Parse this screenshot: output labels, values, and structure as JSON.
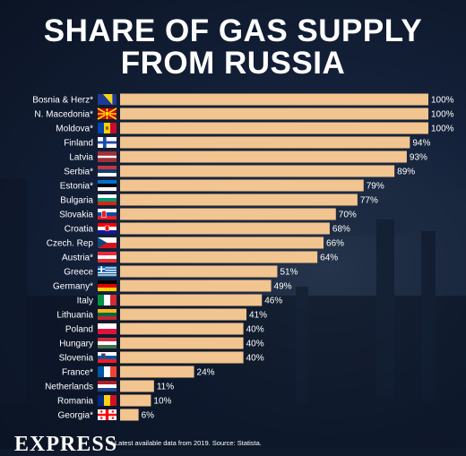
{
  "chart_data": {
    "type": "bar",
    "orientation": "horizontal",
    "title_lines": [
      "SHARE OF GAS SUPPLY",
      "FROM RUSSIA"
    ],
    "categories": [
      "Bosnia & Herz*",
      "N. Macedonia*",
      "Moldova*",
      "Finland",
      "Latvia",
      "Serbia*",
      "Estonia*",
      "Bulgaria",
      "Slovakia",
      "Croatia",
      "Czech. Rep",
      "Austria*",
      "Greece",
      "Germany*",
      "Italy",
      "Lithuania",
      "Poland",
      "Hungary",
      "Slovenia",
      "France*",
      "Netherlands",
      "Romania",
      "Georgia*"
    ],
    "values": [
      100,
      100,
      100,
      94,
      93,
      89,
      79,
      77,
      70,
      68,
      66,
      64,
      51,
      49,
      46,
      41,
      40,
      40,
      40,
      24,
      11,
      10,
      6
    ],
    "value_labels": [
      "100%",
      "100%",
      "100%",
      "94%",
      "93%",
      "89%",
      "79%",
      "77%",
      "70%",
      "68%",
      "66%",
      "64%",
      "51%",
      "49%",
      "46%",
      "41%",
      "40%",
      "40%",
      "40%",
      "24%",
      "11%",
      "10%",
      "6%"
    ],
    "xlim": [
      0,
      100
    ],
    "grid": false,
    "bar_color": "#f2c48f",
    "label_color": "#ffffff",
    "flags": [
      "bosnia",
      "north-macedonia",
      "moldova",
      "finland",
      "latvia",
      "serbia",
      "estonia",
      "bulgaria",
      "slovakia",
      "croatia",
      "czech-republic",
      "austria",
      "greece",
      "germany",
      "italy",
      "lithuania",
      "poland",
      "hungary",
      "slovenia",
      "france",
      "netherlands",
      "romania",
      "georgia"
    ]
  },
  "footer": {
    "logo": "EXPRESS",
    "note": "* Latest available data from 2019. Source: Statista."
  }
}
